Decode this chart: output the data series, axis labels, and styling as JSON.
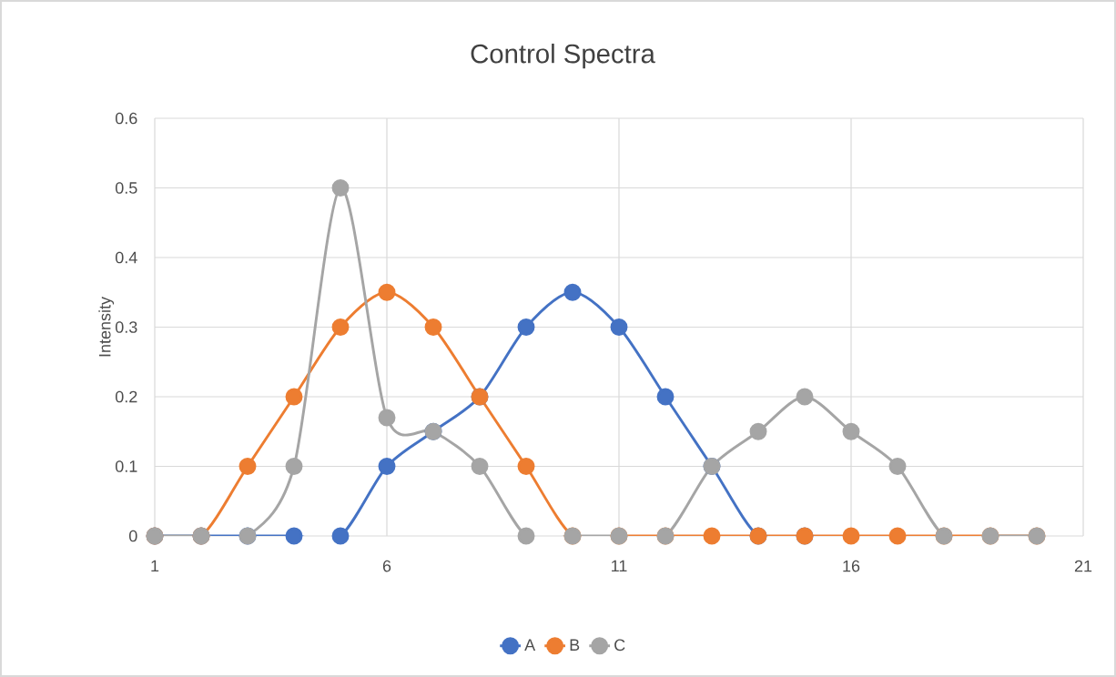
{
  "chart_data": {
    "type": "line",
    "title": "Control Spectra",
    "ylabel": "Intensity",
    "x": [
      1,
      2,
      3,
      4,
      5,
      6,
      7,
      8,
      9,
      10,
      11,
      12,
      13,
      14,
      15,
      16,
      17,
      18,
      19,
      20
    ],
    "series": [
      {
        "name": "A",
        "color": "#4472c4",
        "values": [
          0,
          0,
          0,
          0,
          0,
          0.1,
          0.15,
          0.2,
          0.3,
          0.35,
          0.3,
          0.2,
          0.1,
          0,
          0,
          null,
          null,
          null,
          null,
          null
        ]
      },
      {
        "name": "B",
        "color": "#ed7d31",
        "values": [
          0,
          0,
          0.1,
          0.2,
          0.3,
          0.35,
          0.3,
          0.2,
          0.1,
          0,
          0,
          0,
          0,
          0,
          0,
          0,
          0,
          0,
          0,
          0
        ]
      },
      {
        "name": "C",
        "color": "#a5a5a5",
        "values": [
          0,
          0,
          0,
          0.1,
          0.5,
          0.17,
          0.15,
          0.1,
          0,
          0,
          0,
          0,
          0.1,
          0.15,
          0.2,
          0.15,
          0.1,
          0,
          0,
          0
        ]
      }
    ],
    "xlim": [
      1,
      21
    ],
    "ylim": [
      0,
      0.6
    ],
    "xticks": [
      1,
      6,
      11,
      16,
      21
    ],
    "yticks": [
      0,
      0.1,
      0.2,
      0.3,
      0.4,
      0.5,
      0.6
    ],
    "grid": true,
    "legend": "bottom",
    "marker": "circle"
  }
}
